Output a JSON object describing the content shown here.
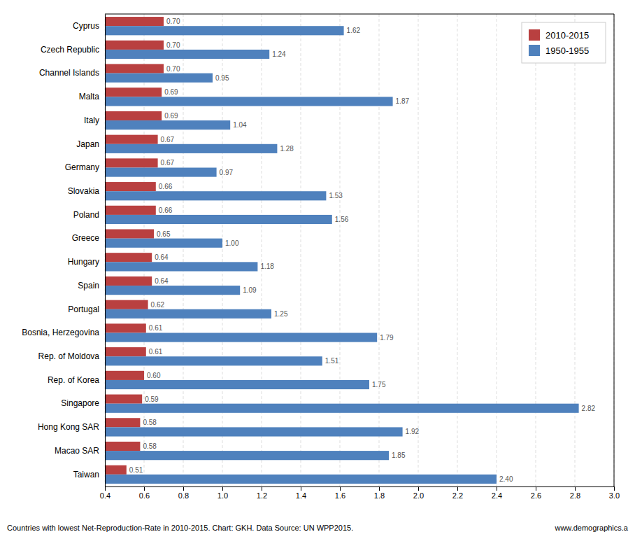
{
  "chart_data": {
    "type": "bar",
    "orientation": "horizontal",
    "categories": [
      "Cyprus",
      "Czech Republic",
      "Channel Islands",
      "Malta",
      "Italy",
      "Japan",
      "Germany",
      "Slovakia",
      "Poland",
      "Greece",
      "Hungary",
      "Spain",
      "Portugal",
      "Bosnia, Herzegovina",
      "Rep. of Moldova",
      "Rep. of Korea",
      "Singapore",
      "Hong Kong SAR",
      "Macao SAR",
      "Taiwan"
    ],
    "series": [
      {
        "name": "2010-2015",
        "color": "#b94040",
        "values": [
          0.7,
          0.7,
          0.7,
          0.69,
          0.69,
          0.67,
          0.67,
          0.66,
          0.66,
          0.65,
          0.64,
          0.64,
          0.62,
          0.61,
          0.61,
          0.6,
          0.59,
          0.58,
          0.58,
          0.51
        ],
        "value_labels": [
          "0.70",
          "0.70",
          "0.70",
          "0.69",
          "0.69",
          "0.67",
          "0.67",
          "0.66",
          "0.66",
          "0.65",
          "0.64",
          "0.64",
          "0.62",
          "0.61",
          "0.61",
          "0.60",
          "0.59",
          "0.58",
          "0.58",
          "0.51"
        ]
      },
      {
        "name": "1950-1955",
        "color": "#4f81bd",
        "values": [
          1.62,
          1.24,
          0.95,
          1.87,
          1.04,
          1.28,
          0.97,
          1.53,
          1.56,
          1.0,
          1.18,
          1.09,
          1.25,
          1.79,
          1.51,
          1.75,
          2.82,
          1.92,
          1.85,
          2.4
        ],
        "value_labels": [
          "1.62",
          "1.24",
          "0.95",
          "1.87",
          "1.04",
          "1.28",
          "0.97",
          "1.53",
          "1.56",
          "1.00",
          "1.18",
          "1.09",
          "1.25",
          "1.79",
          "1.51",
          "1.75",
          "2.82",
          "1.92",
          "1.85",
          "2.40"
        ]
      }
    ],
    "xlim": [
      0.4,
      3.0
    ],
    "xticks": [
      0.4,
      0.6,
      0.8,
      {
        "value": 1.0,
        "label": "1.0"
      },
      1.2,
      1.4,
      1.6,
      1.8,
      {
        "value": 2.0,
        "label": "2.0"
      },
      2.2,
      2.4,
      2.6,
      2.8,
      {
        "value": 3.0,
        "label": "3.0"
      }
    ],
    "grid": true,
    "legend": "upper right",
    "data_labels": true,
    "annotations": [
      "Countries with lowest Net-Reproduction-Rate  in  2010-2015. Chart: GKH.  Data Source: UN WPP2015.",
      "www.demographics.a"
    ]
  }
}
